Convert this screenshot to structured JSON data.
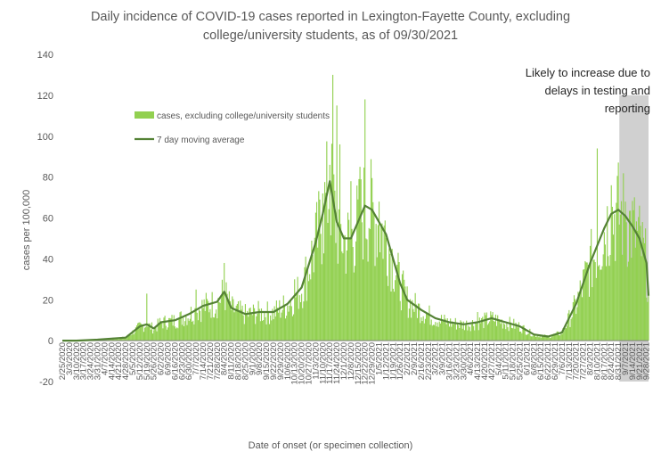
{
  "chart_data": {
    "type": "bar",
    "title_lines": [
      "Daily incidence of COVID-19 cases reported in Lexington-Fayette County, excluding",
      "college/university students, as of 09/30/2021"
    ],
    "xlabel": "Date of onset (or specimen collection)",
    "ylabel": "cases per 100,000",
    "ylim": [
      -20,
      140
    ],
    "yticks": [
      "-20",
      "0",
      "20",
      "40",
      "60",
      "80",
      "100",
      "120",
      "140"
    ],
    "grid": false,
    "legend_position": "upper-left inside plot",
    "legend": {
      "bars_label": "cases, excluding college/university students",
      "line_label": "7 day moving average"
    },
    "annotation_lines": [
      "Likely to increase due to",
      "delays in testing and",
      "reporting"
    ],
    "shaded_region": [
      "9/1/2021",
      "9/30/2021"
    ],
    "x_start": "2/25/2020",
    "x_end": "9/30/2021",
    "x_tick_labels": [
      "2/25/2020",
      "3/3/2020",
      "3/10/2020",
      "3/17/2020",
      "3/24/2020",
      "3/31/2020",
      "4/7/2020",
      "4/14/2020",
      "4/21/2020",
      "4/28/2020",
      "5/5/2020",
      "5/12/2020",
      "5/19/2020",
      "5/26/2020",
      "6/2/2020",
      "6/9/2020",
      "6/16/2020",
      "6/23/2020",
      "6/30/2020",
      "7/7/2020",
      "7/14/2020",
      "7/21/2020",
      "7/28/2020",
      "8/4/2020",
      "8/11/2020",
      "8/18/2020",
      "8/25/2020",
      "9/1/2020",
      "9/8/2020",
      "9/15/2020",
      "9/22/2020",
      "9/29/2020",
      "10/6/2020",
      "10/13/2020",
      "10/20/2020",
      "10/27/2020",
      "11/3/2020",
      "11/10/2020",
      "11/17/2020",
      "11/24/2020",
      "12/1/2020",
      "12/8/2020",
      "12/15/2020",
      "12/22/2020",
      "12/29/2020",
      "1/5/2021",
      "1/12/2021",
      "1/19/2021",
      "1/26/2021",
      "2/2/2021",
      "2/9/2021",
      "2/16/2021",
      "2/23/2021",
      "3/2/2021",
      "3/9/2021",
      "3/16/2021",
      "3/23/2021",
      "3/30/2021",
      "4/6/2021",
      "4/13/2021",
      "4/20/2021",
      "4/27/2021",
      "5/4/2021",
      "5/11/2021",
      "5/18/2021",
      "5/25/2021",
      "6/1/2021",
      "6/8/2021",
      "6/15/2021",
      "6/22/2021",
      "6/29/2021",
      "7/6/2021",
      "7/13/2021",
      "7/20/2021",
      "7/27/2021",
      "8/3/2021",
      "8/10/2021",
      "8/17/2021",
      "8/24/2021",
      "8/31/2021",
      "9/7/2021",
      "9/14/2021",
      "9/21/2021",
      "9/28/2021"
    ],
    "series": [
      {
        "name": "7 day moving average",
        "kind": "line",
        "x": [
          "2/25/2020",
          "3/10/2020",
          "3/31/2020",
          "4/14/2020",
          "4/28/2020",
          "5/12/2020",
          "5/19/2020",
          "5/26/2020",
          "6/2/2020",
          "6/16/2020",
          "6/30/2020",
          "7/14/2020",
          "7/28/2020",
          "8/4/2020",
          "8/11/2020",
          "8/25/2020",
          "9/8/2020",
          "9/22/2020",
          "10/6/2020",
          "10/20/2020",
          "11/3/2020",
          "11/10/2020",
          "11/17/2020",
          "11/24/2020",
          "12/1/2020",
          "12/8/2020",
          "12/15/2020",
          "12/22/2020",
          "12/29/2020",
          "1/5/2021",
          "1/12/2021",
          "1/19/2021",
          "1/26/2021",
          "2/2/2021",
          "2/16/2021",
          "3/2/2021",
          "3/16/2021",
          "3/30/2021",
          "4/13/2021",
          "4/27/2021",
          "5/11/2021",
          "5/25/2021",
          "6/8/2021",
          "6/22/2021",
          "7/6/2021",
          "7/20/2021",
          "8/3/2021",
          "8/17/2021",
          "8/24/2021",
          "8/31/2021",
          "9/7/2021",
          "9/14/2021",
          "9/21/2021",
          "9/28/2021",
          "9/30/2021"
        ],
        "y": [
          0,
          0,
          0.5,
          1,
          1.5,
          7,
          8,
          6,
          9,
          10,
          13,
          17,
          19,
          24,
          16,
          13,
          14,
          14,
          18,
          26,
          48,
          62,
          78,
          58,
          50,
          50,
          58,
          66,
          64,
          58,
          52,
          40,
          28,
          20,
          15,
          11,
          9,
          8,
          9,
          11,
          9,
          7,
          3,
          2,
          4,
          18,
          38,
          55,
          62,
          64,
          61,
          56,
          50,
          38,
          22
        ]
      },
      {
        "name": "cases, excluding college/university students",
        "kind": "bar"
      }
    ],
    "bar_highlights": [
      {
        "x": "5/19/2020",
        "y": 23
      },
      {
        "x": "7/7/2020",
        "y": 25
      },
      {
        "x": "8/4/2020",
        "y": 38
      },
      {
        "x": "10/13/2020",
        "y": 30
      },
      {
        "x": "11/10/2020",
        "y": 72
      },
      {
        "x": "11/17/2020",
        "y": 86
      },
      {
        "x": "11/20/2020",
        "y": 130
      },
      {
        "x": "11/24/2020",
        "y": 115
      },
      {
        "x": "11/27/2020",
        "y": 96
      },
      {
        "x": "12/8/2020",
        "y": 78
      },
      {
        "x": "12/17/2020",
        "y": 85
      },
      {
        "x": "12/22/2020",
        "y": 118
      },
      {
        "x": "1/5/2021",
        "y": 68
      },
      {
        "x": "4/13/2021",
        "y": 14
      },
      {
        "x": "8/10/2021",
        "y": 94
      },
      {
        "x": "8/24/2021",
        "y": 76
      },
      {
        "x": "9/7/2021",
        "y": 68
      }
    ],
    "colors": {
      "bars": "#92d050",
      "line": "#548235",
      "shade": "#d0d0d0",
      "axis_text": "#595959",
      "axis_line": "#7f7f7f"
    }
  }
}
